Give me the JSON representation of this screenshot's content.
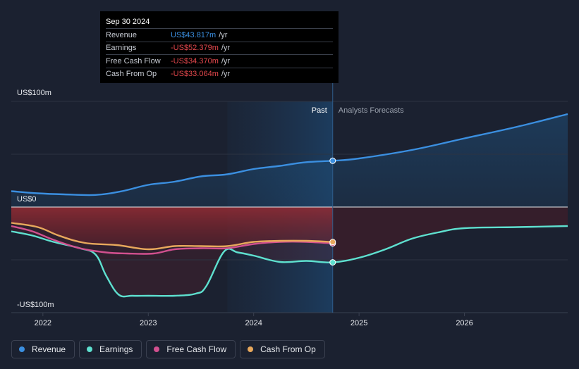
{
  "tooltip": {
    "date": "Sep 30 2024",
    "rows": [
      {
        "label": "Revenue",
        "value": "US$43.817m",
        "unit": "/yr",
        "color": "#3b8fe0"
      },
      {
        "label": "Earnings",
        "value": "-US$52.379m",
        "unit": "/yr",
        "color": "#e5484d"
      },
      {
        "label": "Free Cash Flow",
        "value": "-US$34.370m",
        "unit": "/yr",
        "color": "#e5484d"
      },
      {
        "label": "Cash From Op",
        "value": "-US$33.064m",
        "unit": "/yr",
        "color": "#e5484d"
      }
    ]
  },
  "legend": [
    {
      "label": "Revenue",
      "color": "#3b8fe0"
    },
    {
      "label": "Earnings",
      "color": "#5ee0cf"
    },
    {
      "label": "Free Cash Flow",
      "color": "#d2508f"
    },
    {
      "label": "Cash From Op",
      "color": "#e8a85c"
    }
  ],
  "chart_data": {
    "type": "line",
    "sections": {
      "past": "Past",
      "forecast": "Analysts Forecasts"
    },
    "y_tick_labels": [
      "US$100m",
      "US$0",
      "-US$100m"
    ],
    "ylim": [
      -100,
      100
    ],
    "xlim": [
      2021.7,
      2026.98
    ],
    "x_ticks": [
      2022,
      2023,
      2024,
      2025,
      2026
    ],
    "forecast_start": 2024.75,
    "highlight_start": 2023.75,
    "series": [
      {
        "name": "Revenue",
        "color": "#3b8fe0",
        "points": [
          [
            2021.7,
            15
          ],
          [
            2021.95,
            13
          ],
          [
            2022.2,
            12
          ],
          [
            2022.5,
            11.5
          ],
          [
            2022.75,
            15
          ],
          [
            2023.0,
            21
          ],
          [
            2023.25,
            24
          ],
          [
            2023.5,
            29
          ],
          [
            2023.75,
            31
          ],
          [
            2024.0,
            36
          ],
          [
            2024.25,
            39
          ],
          [
            2024.5,
            42.5
          ],
          [
            2024.75,
            43.8
          ],
          [
            2025.0,
            46
          ],
          [
            2025.5,
            54
          ],
          [
            2026.0,
            65
          ],
          [
            2026.5,
            76
          ],
          [
            2026.98,
            88
          ]
        ]
      },
      {
        "name": "Earnings",
        "color": "#5ee0cf",
        "points": [
          [
            2021.7,
            -23
          ],
          [
            2021.9,
            -27
          ],
          [
            2022.1,
            -33
          ],
          [
            2022.35,
            -39
          ],
          [
            2022.5,
            -45
          ],
          [
            2022.6,
            -65
          ],
          [
            2022.72,
            -83
          ],
          [
            2022.85,
            -84
          ],
          [
            2023.0,
            -84
          ],
          [
            2023.25,
            -84
          ],
          [
            2023.45,
            -82
          ],
          [
            2023.55,
            -75
          ],
          [
            2023.72,
            -42
          ],
          [
            2023.85,
            -43
          ],
          [
            2024.0,
            -46
          ],
          [
            2024.25,
            -52
          ],
          [
            2024.5,
            -51
          ],
          [
            2024.75,
            -52.4
          ],
          [
            2025.0,
            -48
          ],
          [
            2025.25,
            -40
          ],
          [
            2025.5,
            -30
          ],
          [
            2025.75,
            -24
          ],
          [
            2026.0,
            -20
          ],
          [
            2026.5,
            -19
          ],
          [
            2026.98,
            -18
          ]
        ]
      },
      {
        "name": "Free Cash Flow",
        "color": "#d2508f",
        "points": [
          [
            2021.7,
            -18
          ],
          [
            2021.9,
            -23
          ],
          [
            2022.1,
            -31
          ],
          [
            2022.35,
            -39
          ],
          [
            2022.6,
            -43
          ],
          [
            2022.8,
            -44
          ],
          [
            2023.05,
            -44
          ],
          [
            2023.25,
            -40
          ],
          [
            2023.5,
            -39
          ],
          [
            2023.75,
            -39
          ],
          [
            2024.0,
            -35
          ],
          [
            2024.25,
            -33
          ],
          [
            2024.5,
            -33
          ],
          [
            2024.75,
            -34.4
          ]
        ]
      },
      {
        "name": "Cash From Op",
        "color": "#e8a85c",
        "points": [
          [
            2021.7,
            -15
          ],
          [
            2021.95,
            -19
          ],
          [
            2022.15,
            -27
          ],
          [
            2022.4,
            -34
          ],
          [
            2022.7,
            -36
          ],
          [
            2023.0,
            -40
          ],
          [
            2023.25,
            -37
          ],
          [
            2023.5,
            -37
          ],
          [
            2023.75,
            -37
          ],
          [
            2024.0,
            -33
          ],
          [
            2024.25,
            -32
          ],
          [
            2024.5,
            -32
          ],
          [
            2024.75,
            -33.1
          ]
        ]
      }
    ],
    "markers": [
      {
        "series": "Revenue",
        "x": 2024.75,
        "y": 43.8
      },
      {
        "series": "Earnings",
        "x": 2024.75,
        "y": -52.4
      },
      {
        "series": "Free Cash Flow",
        "x": 2024.75,
        "y": -34.4
      },
      {
        "series": "Cash From Op",
        "x": 2024.75,
        "y": -33.1
      }
    ]
  }
}
